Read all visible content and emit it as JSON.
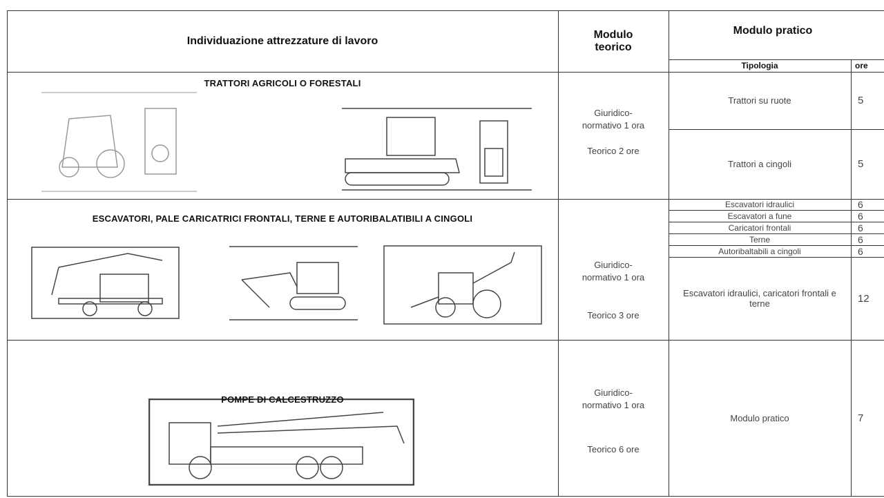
{
  "header": {
    "col1": "Individuazione attrezzature di lavoro",
    "col2": "Modulo teorico",
    "col3": "Modulo pratico",
    "col3_sub": "Tipologia",
    "col4_sub": "ore"
  },
  "rows": [
    {
      "title": "TRATTORI AGRICOLI O FORESTALI",
      "teorico": [
        "Giuridico-",
        "normativo 1 ora",
        "Teorico 2 ore"
      ],
      "pratico": [
        {
          "tipologia": "Trattori su ruote",
          "ore": 5
        },
        {
          "tipologia": "Trattori a cingoli",
          "ore": 5
        }
      ]
    },
    {
      "title": "ESCAVATORI, PALE CARICATRICI FRONTALI, TERNE E AUTORIBALATIBILI A CINGOLI",
      "teorico": [
        "Giuridico-",
        "normativo 1 ora",
        "Teorico 3 ore"
      ],
      "pratico": [
        {
          "tipologia": "Escavatori idraulici",
          "ore": 6
        },
        {
          "tipologia": "Escavatori a fune",
          "ore": 6
        },
        {
          "tipologia": "Caricatori frontali",
          "ore": 6
        },
        {
          "tipologia": "Terne",
          "ore": 6
        },
        {
          "tipologia": "Autoribaltabili a cingoli",
          "ore": 6
        },
        {
          "tipologia": "Escavatori idraulici, caricatori frontali e terne",
          "ore": 12
        }
      ]
    },
    {
      "title": "POMPE DI CALCESTRUZZO",
      "teorico": [
        "Giuridico-",
        "normativo 1 ora",
        "Teorico 6 ore"
      ],
      "pratico": [
        {
          "tipologia": "Modulo pratico",
          "ore": 7
        }
      ]
    }
  ]
}
